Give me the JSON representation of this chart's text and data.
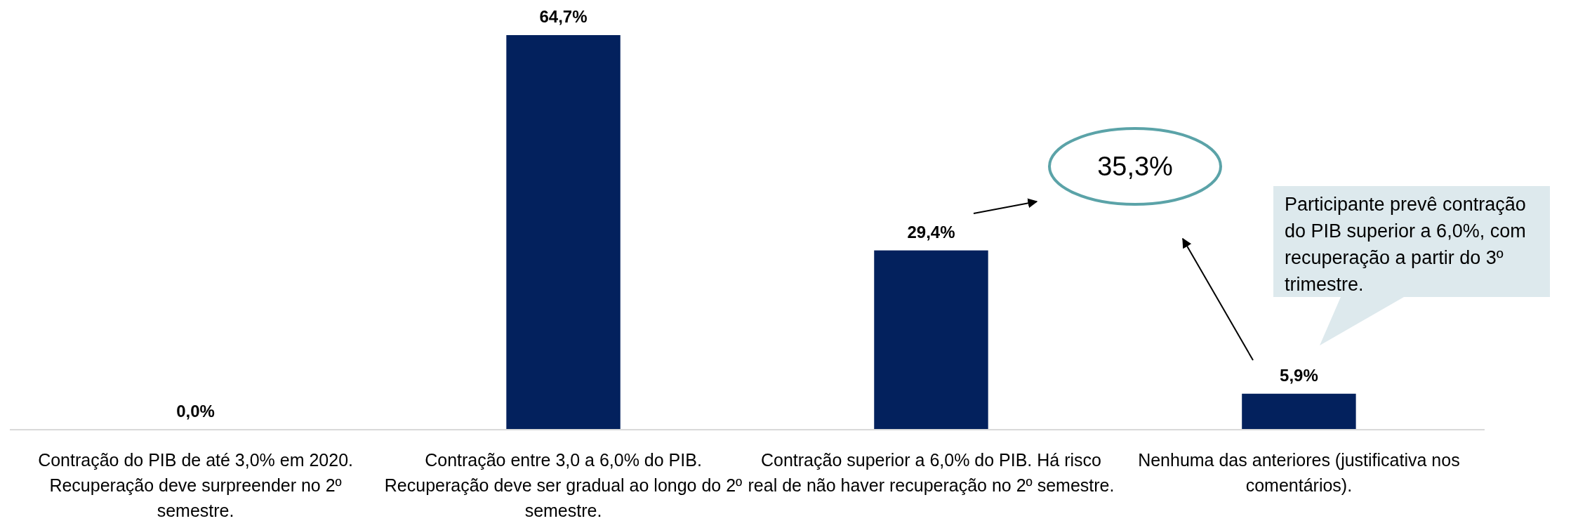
{
  "chart_data": {
    "type": "bar",
    "categories": [
      "Contração do PIB de até 3,0% em 2020. Recuperação deve surpreender no 2º semestre.",
      "Contração entre 3,0 a 6,0% do PIB. Recuperação deve ser gradual ao longo do 2º semestre.",
      "Contração superior a 6,0% do PIB. Há risco real de não haver recuperação no 2º semestre.",
      "Nenhuma das anteriores (justificativa nos comentários)."
    ],
    "values": [
      0,
      64.7,
      29.4,
      5.9
    ],
    "value_labels": [
      "0,0%",
      "64,7%",
      "29,4%",
      "5,9%"
    ],
    "color": "#03215d",
    "annotations": [
      "35,3%",
      "Participante prevê contração do PIB superior a 6,0%, com recuperação a partir do 3º trimestre."
    ]
  }
}
